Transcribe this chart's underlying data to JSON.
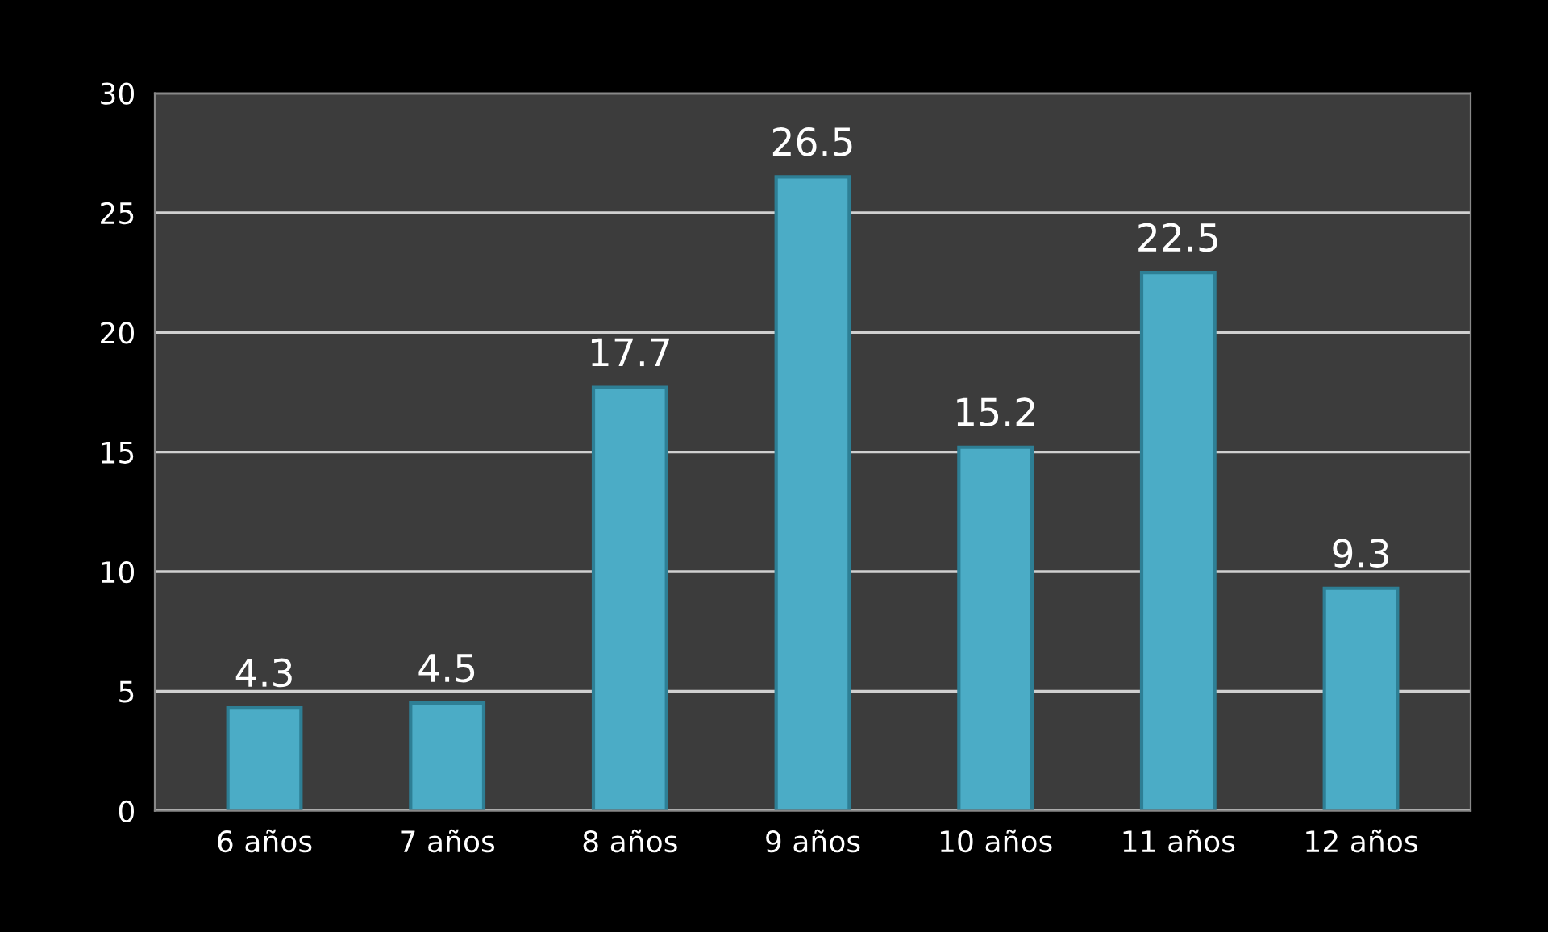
{
  "chart_data": {
    "type": "bar",
    "categories": [
      "6 años",
      "7 años",
      "8 años",
      "9 años",
      "10 años",
      "11 años",
      "12 años"
    ],
    "values": [
      4.3,
      4.5,
      17.7,
      26.5,
      15.2,
      22.5,
      9.3
    ],
    "color": "#4bacc6",
    "ylim": [
      0,
      30
    ],
    "yticks": [
      0,
      5,
      10,
      15,
      20,
      25,
      30
    ],
    "grid": "y",
    "data_labels": true
  }
}
